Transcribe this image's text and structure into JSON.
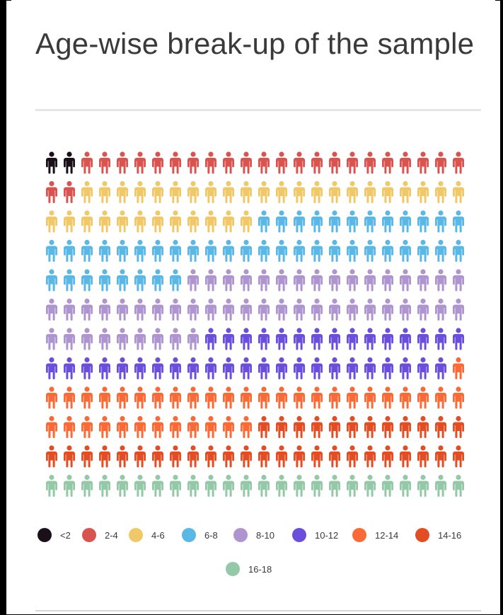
{
  "title": "Age-wise break-up of the sample",
  "chart_data": {
    "type": "pictogram",
    "title": "Age-wise break-up of the sample",
    "icon": "person-icon",
    "columns": 24,
    "rows": 12,
    "unit_count": 288,
    "categories": [
      "<2",
      "2-4",
      "4-6",
      "6-8",
      "8-10",
      "10-12",
      "12-14",
      "14-16",
      "16-18"
    ],
    "values": [
      2,
      24,
      34,
      44,
      49,
      38,
      37,
      36,
      24
    ],
    "colors": [
      "#1a1019",
      "#d9534f",
      "#f0c867",
      "#5ab8e6",
      "#ae95cf",
      "#6b4fdc",
      "#fa6a36",
      "#e24d23",
      "#94c9a7"
    ],
    "legend": "bottom",
    "grid": false
  }
}
